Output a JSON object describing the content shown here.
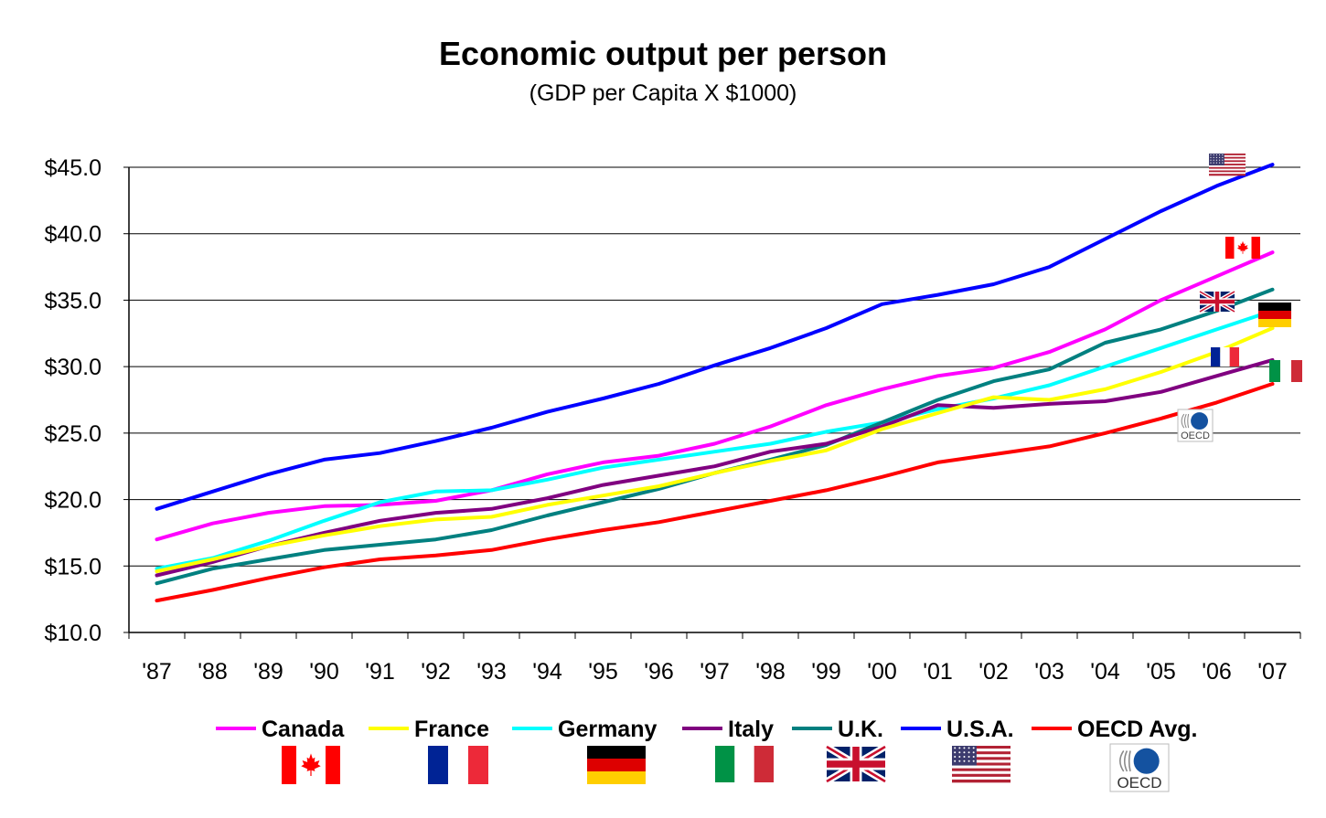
{
  "chart_data": {
    "type": "line",
    "title": "Economic output per person",
    "subtitle": "(GDP per Capita X $1000)",
    "categories": [
      "'87",
      "'88",
      "'89",
      "'90",
      "'91",
      "'92",
      "'93",
      "'94",
      "'95",
      "'96",
      "'97",
      "'98",
      "'99",
      "'00",
      "'01",
      "'02",
      "'03",
      "'04",
      "'05",
      "'06",
      "'07"
    ],
    "ylim": [
      10,
      45
    ],
    "yticks": [
      10,
      15,
      20,
      25,
      30,
      35,
      40,
      45
    ],
    "ytick_labels": [
      "$10.0",
      "$15.0",
      "$20.0",
      "$25.0",
      "$30.0",
      "$35.0",
      "$40.0",
      "$45.0"
    ],
    "grid": true,
    "legend_position": "bottom",
    "series": [
      {
        "name": "Canada",
        "color": "#ff00ff",
        "flag": "canada",
        "values": [
          17.0,
          18.2,
          19.0,
          19.5,
          19.6,
          19.9,
          20.7,
          21.9,
          22.8,
          23.3,
          24.2,
          25.5,
          27.1,
          28.3,
          29.3,
          29.9,
          31.1,
          32.8,
          35.0,
          36.8,
          38.6
        ]
      },
      {
        "name": "France",
        "color": "#ffff00",
        "flag": "france",
        "values": [
          14.6,
          15.5,
          16.5,
          17.3,
          18.0,
          18.5,
          18.7,
          19.6,
          20.3,
          21.0,
          22.0,
          22.9,
          23.7,
          25.3,
          26.5,
          27.7,
          27.5,
          28.3,
          29.6,
          31.1,
          32.9
        ]
      },
      {
        "name": "Germany",
        "color": "#00ffff",
        "flag": "germany",
        "values": [
          14.8,
          15.6,
          16.9,
          18.4,
          19.8,
          20.6,
          20.7,
          21.5,
          22.4,
          23.0,
          23.6,
          24.2,
          25.1,
          25.8,
          26.8,
          27.6,
          28.6,
          30.0,
          31.4,
          32.8,
          34.2
        ]
      },
      {
        "name": "Italy",
        "color": "#800080",
        "flag": "italy",
        "values": [
          14.3,
          15.3,
          16.5,
          17.5,
          18.4,
          19.0,
          19.3,
          20.1,
          21.1,
          21.8,
          22.5,
          23.6,
          24.2,
          25.5,
          27.1,
          26.9,
          27.2,
          27.4,
          28.1,
          29.3,
          30.5
        ]
      },
      {
        "name": "U.K.",
        "color": "#008080",
        "flag": "uk",
        "values": [
          13.7,
          14.8,
          15.5,
          16.2,
          16.6,
          17.0,
          17.7,
          18.8,
          19.8,
          20.8,
          22.0,
          23.0,
          24.1,
          25.8,
          27.5,
          28.9,
          29.8,
          31.8,
          32.8,
          34.2,
          35.8
        ]
      },
      {
        "name": "U.S.A.",
        "color": "#0000ff",
        "flag": "usa",
        "values": [
          19.3,
          20.6,
          21.9,
          23.0,
          23.5,
          24.4,
          25.4,
          26.6,
          27.6,
          28.7,
          30.1,
          31.4,
          32.9,
          34.7,
          35.4,
          36.2,
          37.5,
          39.6,
          41.7,
          43.6,
          45.2
        ]
      },
      {
        "name": "OECD Avg.",
        "color": "#ff0000",
        "flag": "oecd",
        "values": [
          12.4,
          13.2,
          14.1,
          14.9,
          15.5,
          15.8,
          16.2,
          17.0,
          17.7,
          18.3,
          19.1,
          19.9,
          20.7,
          21.7,
          22.8,
          23.4,
          24.0,
          25.0,
          26.1,
          27.3,
          28.7
        ]
      }
    ]
  },
  "oecd_logo_text": "OECD",
  "colors": {
    "axis": "#000000",
    "grid": "#000000",
    "canada_red": "#ff0000",
    "france_blue": "#002395",
    "france_red": "#ed2939",
    "germany_black": "#000000",
    "germany_red": "#dd0000",
    "germany_gold": "#ffce00",
    "italy_green": "#009246",
    "italy_red": "#ce2b37",
    "uk_blue": "#012169",
    "uk_red": "#c8102e",
    "usa_red": "#b22234",
    "usa_blue": "#3c3b6e",
    "oecd_blue": "#1452a0"
  }
}
